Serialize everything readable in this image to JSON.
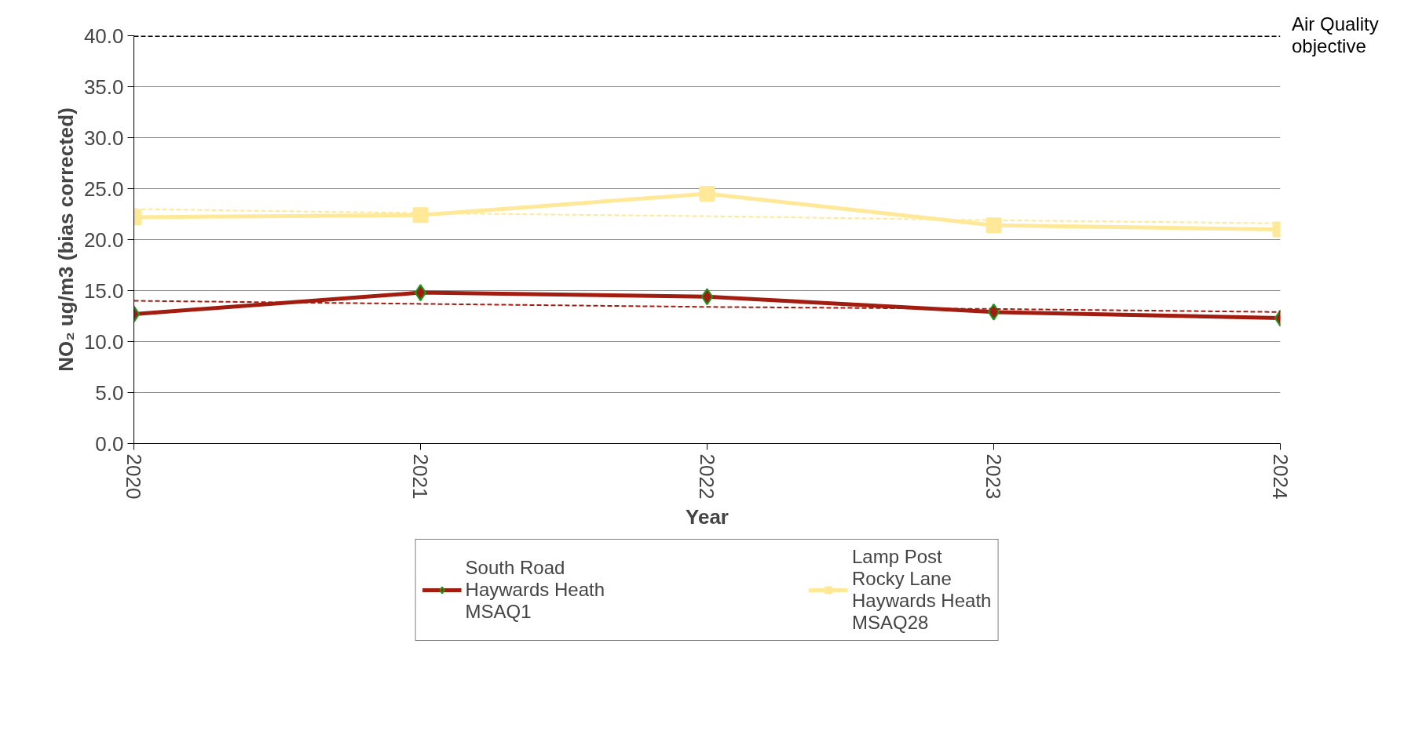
{
  "chart_data": {
    "type": "line",
    "xlabel": "Year",
    "ylabel": "NO₂ ug/m3 (bias corrected)",
    "x": [
      2020,
      2021,
      2022,
      2023,
      2024
    ],
    "series": [
      {
        "name": "South Road\nHaywards Heath\nMSAQ1",
        "color": "#a31c10",
        "values": [
          12.7,
          14.8,
          14.4,
          12.9,
          12.3
        ],
        "marker": "diamond"
      },
      {
        "name": "Lamp Post\nRocky Lane\nHaywards Heath\nMSAQ28",
        "color": "#ffe999",
        "values": [
          22.2,
          22.4,
          24.5,
          21.4,
          21.0
        ],
        "marker": "square"
      },
      {
        "color": "#a31c10",
        "values": [
          14.0,
          13.7,
          13.4,
          13.2,
          12.9
        ],
        "line_style": "dashed",
        "marker": "none"
      },
      {
        "color": "#ffe999",
        "values": [
          23.0,
          22.6,
          22.3,
          21.9,
          21.6
        ],
        "line_style": "dashed",
        "marker": "none"
      }
    ],
    "xlim": [
      2020,
      2024
    ],
    "xticks": [
      2020,
      2021,
      2022,
      2023,
      2024
    ],
    "ylim": [
      0,
      40
    ],
    "yticks": [
      {
        "value": 0,
        "label": "0.0"
      },
      {
        "value": 5,
        "label": "5.0"
      },
      {
        "value": 10,
        "label": "10.0"
      },
      {
        "value": 15,
        "label": "15.0"
      },
      {
        "value": 20,
        "label": "20.0"
      },
      {
        "value": 25,
        "label": "25.0"
      },
      {
        "value": 30,
        "label": "30.0"
      },
      {
        "value": 35,
        "label": "35.0"
      },
      {
        "value": 40,
        "label": "40.0"
      }
    ],
    "ref_lines": [
      {
        "axis": "y",
        "value": 40,
        "label": "Air Quality\nobjective",
        "color": "#000000",
        "line_style": "dashed"
      }
    ],
    "grid": "y",
    "legend": "bottom"
  }
}
